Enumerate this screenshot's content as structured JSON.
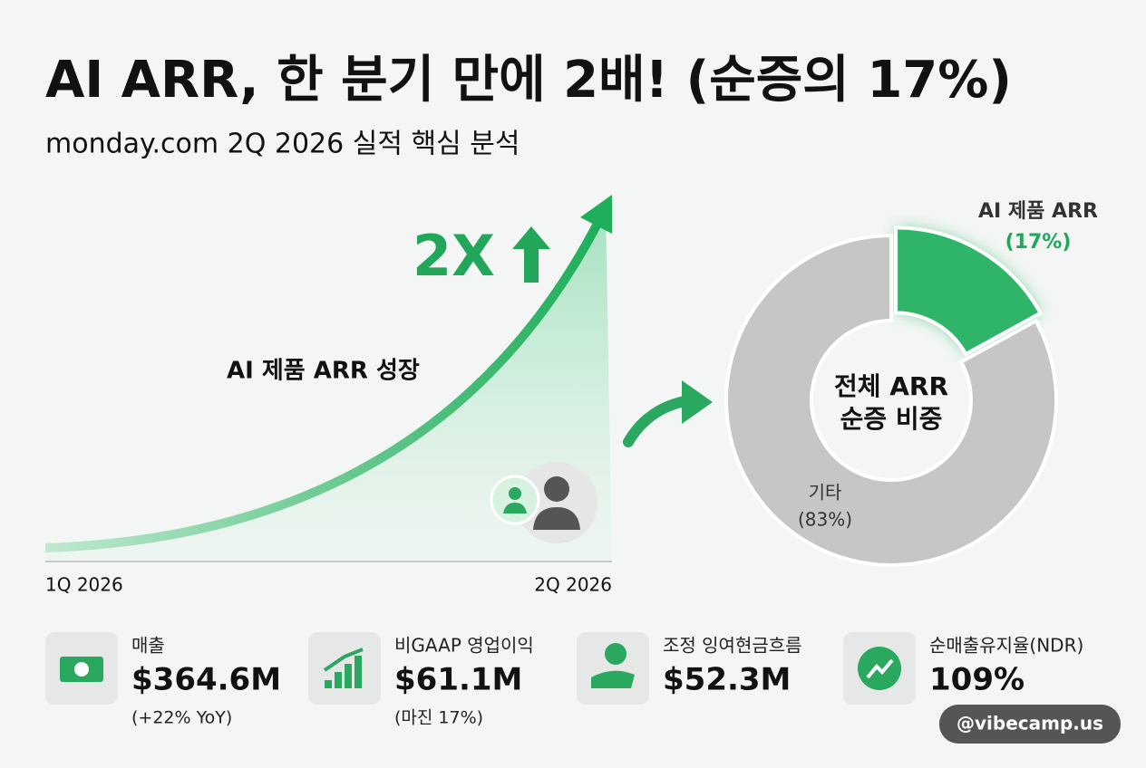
{
  "header": {
    "title": "AI ARR, 한 분기 만에 2배! (순증의 17%)",
    "subtitle": "monday.com 2Q 2026 실적 핵심 분석"
  },
  "growth": {
    "label": "AI 제품 ARR 성장",
    "multiplier": "2X",
    "start": "1Q 2026",
    "end": "2Q 2026"
  },
  "chart_data": {
    "type": "pie",
    "center_label": [
      "전체 ARR",
      "순증 비중"
    ],
    "categories": [
      "AI 제품 ARR",
      "기타"
    ],
    "values": [
      17,
      83
    ],
    "value_labels": [
      "(17%)",
      "(83%)"
    ],
    "colors": [
      "#2fb56a",
      "#c6c6c6"
    ]
  },
  "kpis": [
    {
      "label": "매출",
      "value": "$364.6M",
      "note": "(+22% YoY)"
    },
    {
      "label": "비GAAP 영업이익",
      "value": "$61.1M",
      "note": "(마진 17%)"
    },
    {
      "label": "조정 잉여현금흐름",
      "value": "$52.3M"
    },
    {
      "label": "순매출유지율(NDR)",
      "value": "109%"
    }
  ],
  "watermark": "@vibecamp.us"
}
